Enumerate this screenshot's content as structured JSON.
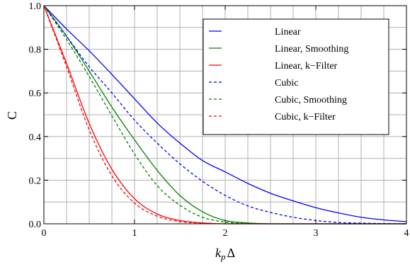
{
  "chart_data": {
    "type": "line",
    "title": "",
    "xlabel": "k",
    "xlabel_sub": "p",
    "xlabel_suffix": "Δ",
    "ylabel": "C",
    "xlim": [
      0,
      4
    ],
    "ylim": [
      0,
      1
    ],
    "xticks": [
      0,
      1,
      2,
      3,
      4
    ],
    "yticks": [
      0.0,
      0.2,
      0.4,
      0.6,
      0.8,
      1.0
    ],
    "xtick_labels": [
      "0",
      "1",
      "2",
      "3",
      "4"
    ],
    "ytick_labels": [
      "0.0",
      "0.2",
      "0.4",
      "0.6",
      "0.8",
      "1.0"
    ],
    "grid": true,
    "legend_position": "top-right",
    "x": [
      0,
      0.25,
      0.5,
      0.75,
      1.0,
      1.25,
      1.5,
      1.75,
      2.0,
      2.25,
      2.5,
      2.75,
      3.0,
      3.25,
      3.5,
      3.75,
      4.0
    ],
    "series": [
      {
        "name": "Linear",
        "color": "#0000ff",
        "dash": "solid",
        "values": [
          1.0,
          0.893,
          0.793,
          0.685,
          0.573,
          0.462,
          0.37,
          0.29,
          0.238,
          0.185,
          0.14,
          0.105,
          0.074,
          0.05,
          0.03,
          0.018,
          0.01
        ]
      },
      {
        "name": "Linear, Smoothing",
        "color": "#008000",
        "dash": "solid",
        "values": [
          1.0,
          0.86,
          0.7,
          0.535,
          0.385,
          0.245,
          0.13,
          0.055,
          0.015,
          0.004,
          0.0,
          0.0,
          0.0,
          0.0,
          0.0,
          0.0,
          0.0
        ]
      },
      {
        "name": "Linear, k−Filter",
        "color": "#ff0000",
        "dash": "solid",
        "values": [
          1.0,
          0.735,
          0.46,
          0.25,
          0.115,
          0.045,
          0.015,
          0.004,
          0.0,
          0.0,
          0.0,
          0.0,
          0.0,
          0.0,
          0.0,
          0.0,
          0.0
        ]
      },
      {
        "name": "Cubic",
        "color": "#0000ff",
        "dash": "dashed",
        "values": [
          1.0,
          0.86,
          0.72,
          0.6,
          0.475,
          0.37,
          0.275,
          0.195,
          0.13,
          0.082,
          0.052,
          0.03,
          0.015,
          0.006,
          0.003,
          0.001,
          0.0
        ]
      },
      {
        "name": "Cubic, Smoothing",
        "color": "#008000",
        "dash": "dashed",
        "values": [
          1.0,
          0.845,
          0.675,
          0.495,
          0.32,
          0.175,
          0.085,
          0.03,
          0.008,
          0.001,
          0.0,
          0.0,
          0.0,
          0.0,
          0.0,
          0.0,
          0.0
        ]
      },
      {
        "name": "Cubic, k−Filter",
        "color": "#ff0000",
        "dash": "dashed",
        "values": [
          1.0,
          0.72,
          0.43,
          0.22,
          0.095,
          0.035,
          0.01,
          0.003,
          0.0,
          0.0,
          0.0,
          0.0,
          0.0,
          0.0,
          0.0,
          0.0,
          0.0
        ]
      }
    ]
  }
}
